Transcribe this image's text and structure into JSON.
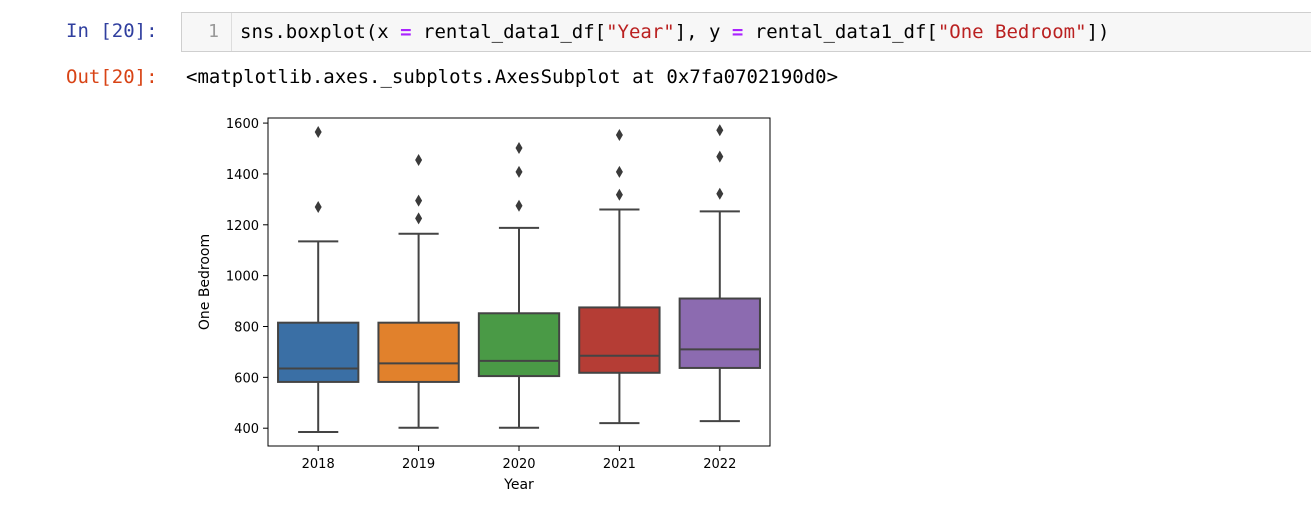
{
  "cell": {
    "in_prompt": "In [20]:",
    "line_number": "1",
    "code": {
      "p1": "sns.boxplot(x ",
      "op1": "=",
      "p2": " rental_data1_df[",
      "s1": "\"Year\"",
      "p3": "], y ",
      "op2": "=",
      "p4": " rental_data1_df[",
      "s2": "\"One Bedroom\"",
      "p5": "])"
    },
    "out_prompt": "Out[20]:",
    "out_text": "<matplotlib.axes._subplots.AxesSubplot at 0x7fa0702190d0>"
  },
  "chart_data": {
    "type": "boxplot",
    "xlabel": "Year",
    "ylabel": "One Bedroom",
    "ylim": [
      330,
      1620
    ],
    "yticks": [
      400,
      600,
      800,
      1000,
      1200,
      1400,
      1600
    ],
    "grid": false,
    "categories": [
      "2018",
      "2019",
      "2020",
      "2021",
      "2022"
    ],
    "boxes": [
      {
        "category": "2018",
        "color": "#3a6fa5",
        "whisker_low": 385,
        "q1": 582,
        "median": 635,
        "q3": 815,
        "whisker_high": 1135,
        "outliers": [
          1270,
          1565
        ]
      },
      {
        "category": "2019",
        "color": "#e1812c",
        "whisker_low": 402,
        "q1": 582,
        "median": 655,
        "q3": 815,
        "whisker_high": 1165,
        "outliers": [
          1225,
          1295,
          1455
        ]
      },
      {
        "category": "2020",
        "color": "#4a9a46",
        "whisker_low": 402,
        "q1": 605,
        "median": 665,
        "q3": 852,
        "whisker_high": 1188,
        "outliers": [
          1275,
          1408,
          1502
        ]
      },
      {
        "category": "2021",
        "color": "#b53d35",
        "whisker_low": 420,
        "q1": 618,
        "median": 685,
        "q3": 875,
        "whisker_high": 1260,
        "outliers": [
          1318,
          1408,
          1553
        ]
      },
      {
        "category": "2022",
        "color": "#8c6bb0",
        "whisker_low": 428,
        "q1": 637,
        "median": 710,
        "q3": 910,
        "whisker_high": 1253,
        "outliers": [
          1322,
          1468,
          1572
        ]
      }
    ]
  }
}
